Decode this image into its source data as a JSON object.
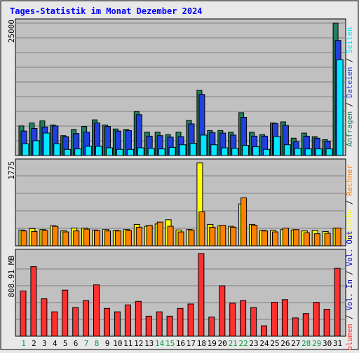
{
  "title": "Tages-Statistik im Monat Dezember 2024",
  "colors": {
    "background": "#e8e8e8",
    "plot": "#c0c0c0",
    "title": "#0000ff",
    "grid": "#808080",
    "hits": "#208060",
    "files": "#2040e0",
    "pages": "#00e8ff",
    "visits": "#ffff00",
    "sites": "#ff8000",
    "kbytes_out": "#ff3030",
    "weekend_day": "#00a040",
    "weekday": "#000000"
  },
  "days": [
    "1",
    "2",
    "3",
    "4",
    "5",
    "6",
    "7",
    "8",
    "9",
    "10",
    "11",
    "12",
    "13",
    "14",
    "15",
    "16",
    "17",
    "18",
    "19",
    "20",
    "21",
    "22",
    "23",
    "24",
    "25",
    "26",
    "27",
    "28",
    "29",
    "30",
    "31"
  ],
  "weekend_days": [
    "1",
    "7",
    "8",
    "14",
    "15",
    "21",
    "22",
    "28",
    "29"
  ],
  "chart_data": [
    {
      "type": "bar",
      "panel": "top",
      "ytick_label": "25000",
      "ylim": [
        0,
        26000
      ],
      "grid": true,
      "legend": [
        "Anfragen",
        "Dateien",
        "Seiten"
      ],
      "legend_separator": " / ",
      "legend_placement": "right",
      "series": [
        {
          "name": "Anfragen",
          "color": "#208060",
          "values": [
            5800,
            6400,
            6800,
            6000,
            3900,
            5100,
            5700,
            7000,
            6000,
            5200,
            5100,
            8600,
            4600,
            4600,
            4100,
            4600,
            6900,
            12800,
            4900,
            4900,
            4600,
            8400,
            4600,
            4100,
            6400,
            6600,
            3400,
            4400,
            3700,
            3100,
            26000
          ]
        },
        {
          "name": "Dateien",
          "color": "#2040e0",
          "values": [
            4800,
            5300,
            5600,
            5800,
            3700,
            4300,
            4600,
            6400,
            5700,
            4800,
            4900,
            8000,
            3800,
            3900,
            3600,
            3700,
            6200,
            12000,
            4500,
            4400,
            4000,
            7500,
            3800,
            3800,
            6300,
            5900,
            2700,
            3800,
            3400,
            2800,
            22600
          ]
        },
        {
          "name": "Seiten",
          "color": "#00e8ff",
          "values": [
            2300,
            2900,
            4400,
            2300,
            1200,
            1300,
            1800,
            1800,
            1500,
            1200,
            1200,
            1500,
            1400,
            1300,
            1600,
            2100,
            2400,
            4000,
            2100,
            1500,
            1400,
            2000,
            1700,
            1200,
            3700,
            2100,
            1400,
            1300,
            1300,
            1300,
            18800
          ]
        }
      ]
    },
    {
      "type": "bar",
      "panel": "middle",
      "ytick_label": "1775",
      "ylim": [
        0,
        1775
      ],
      "grid": true,
      "legend": [
        "Besuche",
        "Rechner"
      ],
      "legend_separator": " / ",
      "legend_placement": "right",
      "series": [
        {
          "name": "Besuche",
          "color": "#ffff00",
          "values": [
            340,
            370,
            350,
            430,
            320,
            380,
            380,
            340,
            350,
            330,
            350,
            460,
            420,
            470,
            560,
            340,
            350,
            1780,
            460,
            430,
            420,
            900,
            460,
            330,
            330,
            350,
            340,
            320,
            330,
            310,
            380
          ]
        },
        {
          "name": "Rechner",
          "color": "#ff8000",
          "values": [
            320,
            310,
            330,
            420,
            300,
            320,
            360,
            330,
            320,
            320,
            330,
            400,
            440,
            510,
            420,
            300,
            340,
            730,
            400,
            440,
            400,
            1030,
            440,
            320,
            300,
            380,
            350,
            280,
            260,
            270,
            380
          ]
        }
      ]
    },
    {
      "type": "bar",
      "panel": "bottom",
      "ytick_label": "808.91 MB",
      "ylim": [
        0,
        950
      ],
      "grid": true,
      "legend": [
        "Volumen",
        "Vol. In",
        "Vol. Out"
      ],
      "legend_separator": " / ",
      "legend_placement": "right",
      "series": [
        {
          "name": "Volumen",
          "color": "#ff3030",
          "values": [
            520,
            800,
            430,
            280,
            530,
            330,
            410,
            590,
            320,
            280,
            360,
            400,
            230,
            280,
            230,
            320,
            370,
            950,
            220,
            580,
            380,
            410,
            330,
            120,
            390,
            420,
            210,
            260,
            390,
            310,
            780
          ]
        }
      ]
    }
  ]
}
